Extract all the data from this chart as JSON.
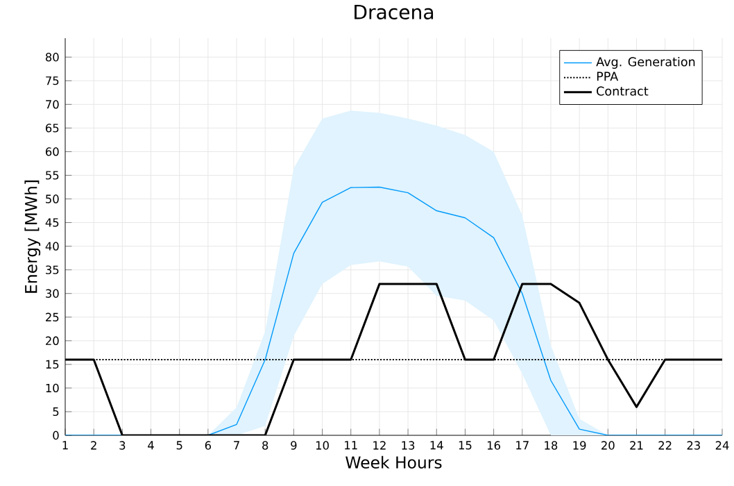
{
  "chart_data": {
    "type": "line",
    "title": "Dracena",
    "xlabel": "Week Hours",
    "ylabel": "Energy [MWh]",
    "x": [
      1,
      2,
      3,
      4,
      5,
      6,
      7,
      8,
      9,
      10,
      11,
      12,
      13,
      14,
      15,
      16,
      17,
      18,
      19,
      20,
      21,
      22,
      23,
      24
    ],
    "series": [
      {
        "name": "Avg. Generation",
        "color": "#009afa",
        "line_style": "solid",
        "values": [
          0,
          0,
          0,
          0,
          0,
          0,
          2.3,
          16,
          38.5,
          49.3,
          52.4,
          52.5,
          51.3,
          47.5,
          46,
          41.8,
          30,
          11.6,
          1.3,
          0,
          0,
          0,
          0,
          0
        ],
        "lower": [
          0,
          0,
          0,
          0,
          0,
          0,
          0,
          2,
          21,
          32,
          36,
          36.8,
          35.7,
          29.5,
          28.5,
          24.3,
          13,
          0,
          0,
          0,
          0,
          0,
          0,
          0
        ],
        "upper": [
          0,
          0,
          0,
          0,
          0,
          0,
          5.9,
          22,
          56.5,
          67,
          68.7,
          68.2,
          67,
          65.5,
          63.5,
          60,
          46.5,
          19,
          3.5,
          0,
          0,
          0,
          0,
          0
        ]
      },
      {
        "name": "PPA",
        "color": "#000000",
        "line_style": "dotted",
        "values": [
          16,
          16,
          16,
          16,
          16,
          16,
          16,
          16,
          16,
          16,
          16,
          16,
          16,
          16,
          16,
          16,
          16,
          16,
          16,
          16,
          16,
          16,
          16,
          16
        ]
      },
      {
        "name": "Contract",
        "color": "#000000",
        "line_style": "solid",
        "values": [
          16,
          16,
          0,
          0,
          0,
          0,
          0,
          0,
          16,
          16,
          16,
          32,
          32,
          32,
          16,
          16,
          32,
          32,
          28,
          16,
          6,
          16,
          16,
          16
        ]
      }
    ],
    "xlim": [
      1,
      24
    ],
    "ylim": [
      0,
      84
    ],
    "xticks": [
      1,
      2,
      3,
      4,
      5,
      6,
      7,
      8,
      9,
      10,
      11,
      12,
      13,
      14,
      15,
      16,
      17,
      18,
      19,
      20,
      21,
      22,
      23,
      24
    ],
    "yticks": [
      0,
      5,
      10,
      15,
      20,
      25,
      30,
      35,
      40,
      45,
      50,
      55,
      60,
      65,
      70,
      75,
      80
    ],
    "grid": true,
    "legend": "top right",
    "marker": "none"
  }
}
